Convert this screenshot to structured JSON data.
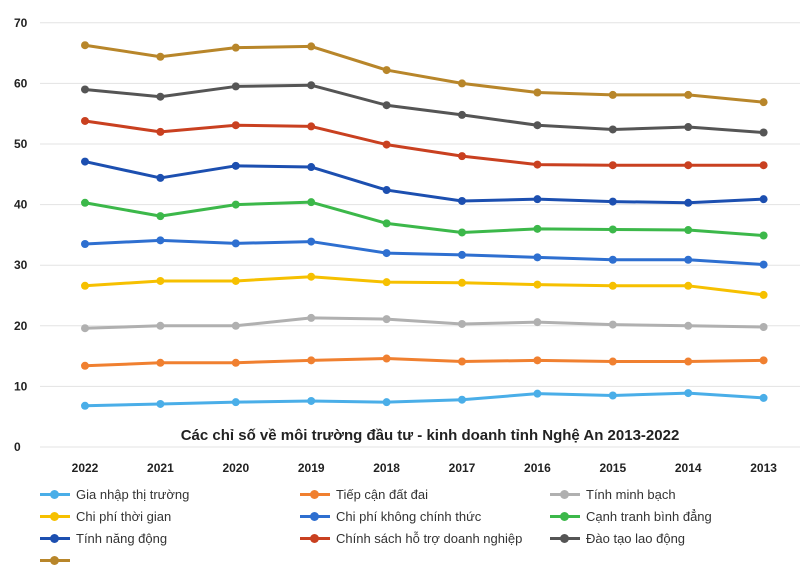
{
  "chart_data": {
    "type": "line",
    "title": "Các chỉ số về môi trường đầu tư - kinh doanh tỉnh Nghệ An 2013-2022",
    "categories": [
      "2022",
      "2021",
      "2020",
      "2019",
      "2018",
      "2017",
      "2016",
      "2015",
      "2014",
      "2013"
    ],
    "ylim": [
      0,
      70
    ],
    "yticks": [
      0,
      10,
      20,
      30,
      40,
      50,
      60,
      70
    ],
    "grid": true,
    "legend_position": "bottom",
    "series": [
      {
        "name": "Gia nhập thị trường",
        "color": "#4aaee8",
        "values": [
          6.8,
          7.1,
          7.4,
          7.6,
          7.4,
          7.8,
          8.8,
          8.5,
          8.9,
          8.1
        ]
      },
      {
        "name": "Tiếp cận đất đai",
        "color": "#f08030",
        "values": [
          13.4,
          13.9,
          13.9,
          14.3,
          14.6,
          14.1,
          14.3,
          14.1,
          14.1,
          14.3
        ]
      },
      {
        "name": "Tính minh bạch",
        "color": "#b0b0b0",
        "values": [
          19.6,
          20.0,
          20.0,
          21.3,
          21.1,
          20.3,
          20.6,
          20.2,
          20.0,
          19.8
        ]
      },
      {
        "name": "Chi phí thời gian",
        "color": "#f6c000",
        "values": [
          26.6,
          27.4,
          27.4,
          28.1,
          27.2,
          27.1,
          26.8,
          26.6,
          26.6,
          25.1
        ]
      },
      {
        "name": "Chi phí không chính thức",
        "color": "#2e6fd0",
        "values": [
          33.5,
          34.1,
          33.6,
          33.9,
          32.0,
          31.7,
          31.3,
          30.9,
          30.9,
          30.1
        ]
      },
      {
        "name": "Cạnh tranh bình đẳng",
        "color": "#3cb84a",
        "values": [
          40.3,
          38.1,
          40.0,
          40.4,
          36.9,
          35.4,
          36.0,
          35.9,
          35.8,
          34.9
        ]
      },
      {
        "name": "Tính năng động",
        "color": "#1c4fb0",
        "values": [
          47.1,
          44.4,
          46.4,
          46.2,
          42.4,
          40.6,
          40.9,
          40.5,
          40.3,
          40.9
        ]
      },
      {
        "name": "Chính sách hỗ trợ doanh nghiệp",
        "color": "#c94020",
        "values": [
          53.8,
          52.0,
          53.1,
          52.9,
          49.9,
          48.0,
          46.6,
          46.5,
          46.5,
          46.5
        ]
      },
      {
        "name": "Đào tạo lao động",
        "color": "#555555",
        "values": [
          59.0,
          57.8,
          59.5,
          59.7,
          56.4,
          54.8,
          53.1,
          52.4,
          52.8,
          51.9
        ]
      },
      {
        "name": "",
        "color": "#b8862a",
        "values": [
          66.3,
          64.4,
          65.9,
          66.1,
          62.2,
          60.0,
          58.5,
          58.1,
          58.1,
          56.9
        ]
      }
    ]
  }
}
